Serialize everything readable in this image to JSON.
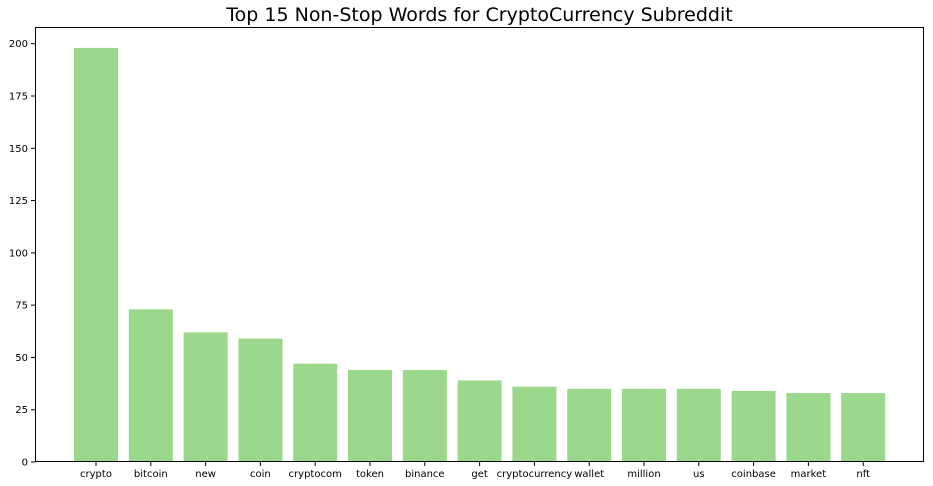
{
  "chart_data": {
    "type": "bar",
    "title": "Top 15 Non-Stop Words for CryptoCurrency Subreddit",
    "xlabel": "",
    "ylabel": "",
    "categories": [
      "crypto",
      "bitcoin",
      "new",
      "coin",
      "cryptocom",
      "token",
      "binance",
      "get",
      "cryptocurrency",
      "wallet",
      "million",
      "us",
      "coinbase",
      "market",
      "nft"
    ],
    "values": [
      198,
      73,
      62,
      59,
      47,
      44,
      44,
      39,
      36,
      35,
      35,
      35,
      34,
      33,
      33
    ],
    "ylim": [
      0,
      208
    ],
    "yticks": [
      0,
      25,
      50,
      75,
      100,
      125,
      150,
      175,
      200
    ],
    "bar_color": "#9bd88b",
    "grid": false,
    "legend": "none"
  }
}
